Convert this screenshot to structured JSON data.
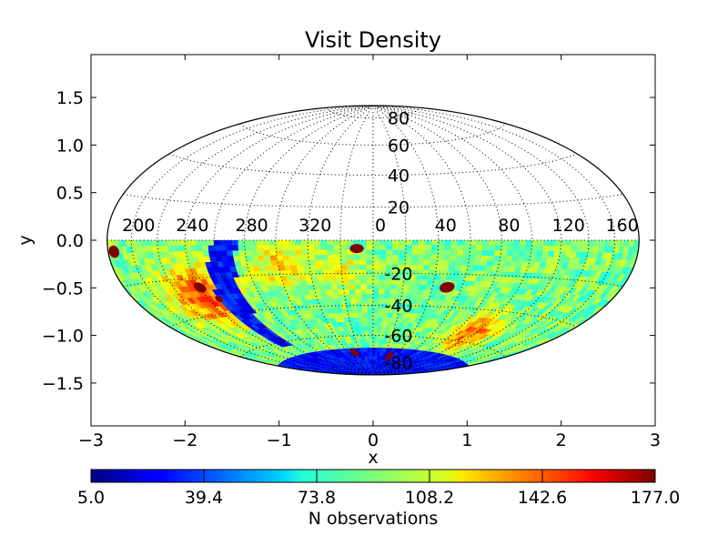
{
  "chart_data": {
    "type": "heatmap",
    "projection": "hammer-aitoff (equal-area all-sky)",
    "title": "Visit Density",
    "xlabel": "x",
    "ylabel": "y",
    "xlim": [
      -3,
      3
    ],
    "ylim": [
      -1.95,
      1.95
    ],
    "x_ticks": [
      "−3",
      "−2",
      "−1",
      "0",
      "1",
      "2",
      "3"
    ],
    "x_tick_values": [
      -3,
      -2,
      -1,
      0,
      1,
      2,
      3
    ],
    "y_ticks": [
      "1.5",
      "1.0",
      "0.5",
      "0.0",
      "−0.5",
      "−1.0",
      "−1.5"
    ],
    "y_tick_values": [
      1.5,
      1.0,
      0.5,
      0.0,
      -0.5,
      -1.0,
      -1.5
    ],
    "grid": true,
    "lon_labels": [
      "200",
      "240",
      "280",
      "320",
      "0",
      "40",
      "80",
      "120",
      "160"
    ],
    "lon_label_values": [
      200,
      240,
      280,
      320,
      0,
      40,
      80,
      120,
      160
    ],
    "lat_labels_north": [
      "80",
      "60",
      "40",
      "20"
    ],
    "lat_labels_north_values": [
      80,
      60,
      40,
      20
    ],
    "lat_labels_south": [
      "-20",
      "-40",
      "-60",
      "-80"
    ],
    "lat_labels_south_values": [
      -20,
      -40,
      -60,
      -80
    ],
    "coverage": "southern hemisphere (dec 0 to -90)",
    "colorbar": {
      "label": "N observations",
      "min": 5.0,
      "max": 177.0,
      "ticks": [
        "5.0",
        "39.4",
        "73.8",
        "108.2",
        "142.6",
        "177.0"
      ],
      "tick_values": [
        5.0,
        39.4,
        73.8,
        108.2,
        142.6,
        177.0
      ],
      "colormap": "jet",
      "orientation": "horizontal"
    },
    "density_features": [
      {
        "description": "low-density band (galactic plane)",
        "approx_value": 30
      },
      {
        "description": "low-density south polar cap",
        "approx_value": 30
      },
      {
        "description": "high-density hotspots (deep drilling fields)",
        "approx_value": 177
      },
      {
        "description": "typical survey level",
        "approx_value": 90
      }
    ]
  }
}
